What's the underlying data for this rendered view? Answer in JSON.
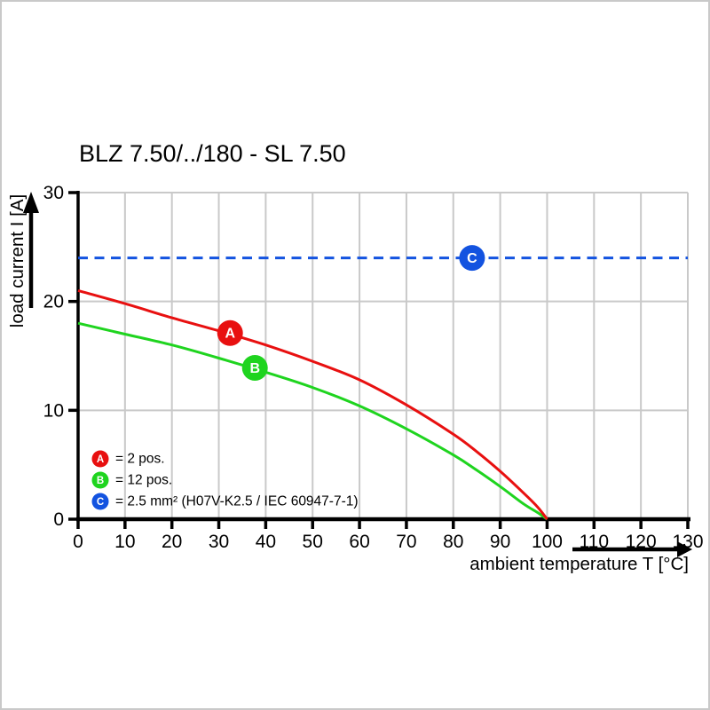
{
  "title": "BLZ 7.50/../180 - SL 7.50",
  "chart_data": {
    "type": "line",
    "title": "BLZ 7.50/../180 - SL 7.50",
    "xlabel": "ambient temperature T [°C]",
    "ylabel": "load current I [A]",
    "xlim": [
      0,
      130
    ],
    "ylim": [
      0,
      30
    ],
    "x_ticks": [
      0,
      10,
      20,
      30,
      40,
      50,
      60,
      70,
      80,
      90,
      100,
      110,
      120,
      130
    ],
    "y_ticks": [
      0,
      10,
      20,
      30
    ],
    "grid": true,
    "colors": {
      "grid": "#c9c9c9",
      "axis": "#000000",
      "red": "#e81010",
      "green": "#1fd41f",
      "blue": "#1353e0",
      "marker_text": "#ffffff"
    },
    "series": [
      {
        "name": "C",
        "legend_text": "= 2.5 mm² (H07V-K2.5 / IEC 60947-7-1)",
        "color_key": "blue",
        "style": "dashed",
        "points": [
          [
            0,
            24
          ],
          [
            130,
            24
          ]
        ],
        "marker": {
          "t": 84,
          "i": 24
        }
      },
      {
        "name": "B",
        "legend_text": "= 12 pos.",
        "color_key": "green",
        "style": "solid",
        "points": [
          [
            0,
            18
          ],
          [
            10,
            17.0
          ],
          [
            20,
            16.0
          ],
          [
            30,
            14.8
          ],
          [
            40,
            13.5
          ],
          [
            50,
            12.1
          ],
          [
            60,
            10.4
          ],
          [
            70,
            8.3
          ],
          [
            80,
            5.9
          ],
          [
            85,
            4.5
          ],
          [
            90,
            3.0
          ],
          [
            95,
            1.4
          ],
          [
            98,
            0.6
          ],
          [
            100,
            0
          ]
        ],
        "marker": {
          "t": 37.7,
          "i": 13.9
        }
      },
      {
        "name": "A",
        "legend_text": "= 2 pos.",
        "color_key": "red",
        "style": "solid",
        "points": [
          [
            0,
            21
          ],
          [
            10,
            19.8
          ],
          [
            20,
            18.5
          ],
          [
            30,
            17.3
          ],
          [
            40,
            16.0
          ],
          [
            50,
            14.5
          ],
          [
            60,
            12.8
          ],
          [
            70,
            10.5
          ],
          [
            80,
            7.8
          ],
          [
            85,
            6.2
          ],
          [
            90,
            4.4
          ],
          [
            95,
            2.4
          ],
          [
            98,
            1.1
          ],
          [
            100,
            0
          ]
        ],
        "marker": {
          "t": 32.4,
          "i": 17.1
        }
      }
    ],
    "legend": {
      "position": "inside-bottom-left",
      "items": [
        {
          "letter": "A",
          "text": "= 2 pos."
        },
        {
          "letter": "B",
          "text": "= 12 pos."
        },
        {
          "letter": "C",
          "text": "= 2.5 mm² (H07V-K2.5 / IEC 60947-7-1)"
        }
      ]
    }
  }
}
